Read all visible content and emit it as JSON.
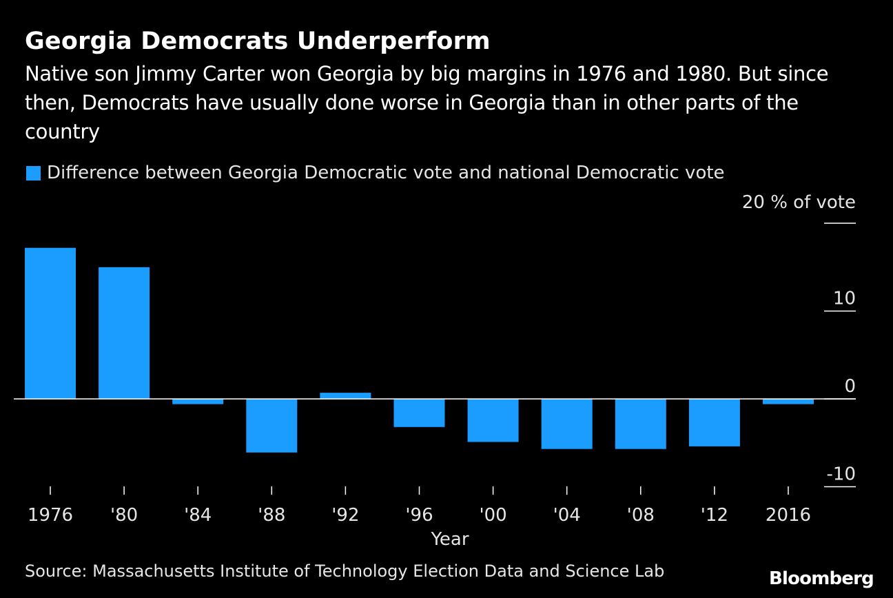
{
  "title": "Georgia Democrats Underperform",
  "subtitle": "Native son Jimmy Carter won Georgia by big margins in 1976 and 1980. But since then, Democrats have usually done worse in Georgia than in other parts of the country",
  "unit_label": "20 % of vote",
  "source": "Source: Massachusetts Institute of Technology Election Data and Science Lab",
  "brand": "Bloomberg",
  "colors": {
    "background": "#000000",
    "bar": "#1a9dff",
    "text": "#ffffff",
    "axis": "#ffffff"
  },
  "chart_data": {
    "type": "bar",
    "title": "Georgia Democrats Underperform",
    "xlabel": "Year",
    "ylabel": "% of vote",
    "categories": [
      "1976",
      "'80",
      "'84",
      "'88",
      "'92",
      "'96",
      "'00",
      "'04",
      "'08",
      "'12",
      "2016"
    ],
    "series": [
      {
        "name": "Difference between Georgia Democratic vote and national Democratic vote",
        "values": [
          17.2,
          15.0,
          -0.6,
          -6.1,
          0.7,
          -3.2,
          -4.9,
          -5.7,
          -5.7,
          -5.4,
          -0.6
        ]
      }
    ],
    "ylim": [
      -10,
      20
    ],
    "yticks": [
      -10,
      0,
      10,
      20
    ],
    "ytick_labels": [
      "-10",
      "0",
      "10",
      ""
    ],
    "grid": false,
    "legend_position": "top-left",
    "y_axis_side": "right"
  }
}
